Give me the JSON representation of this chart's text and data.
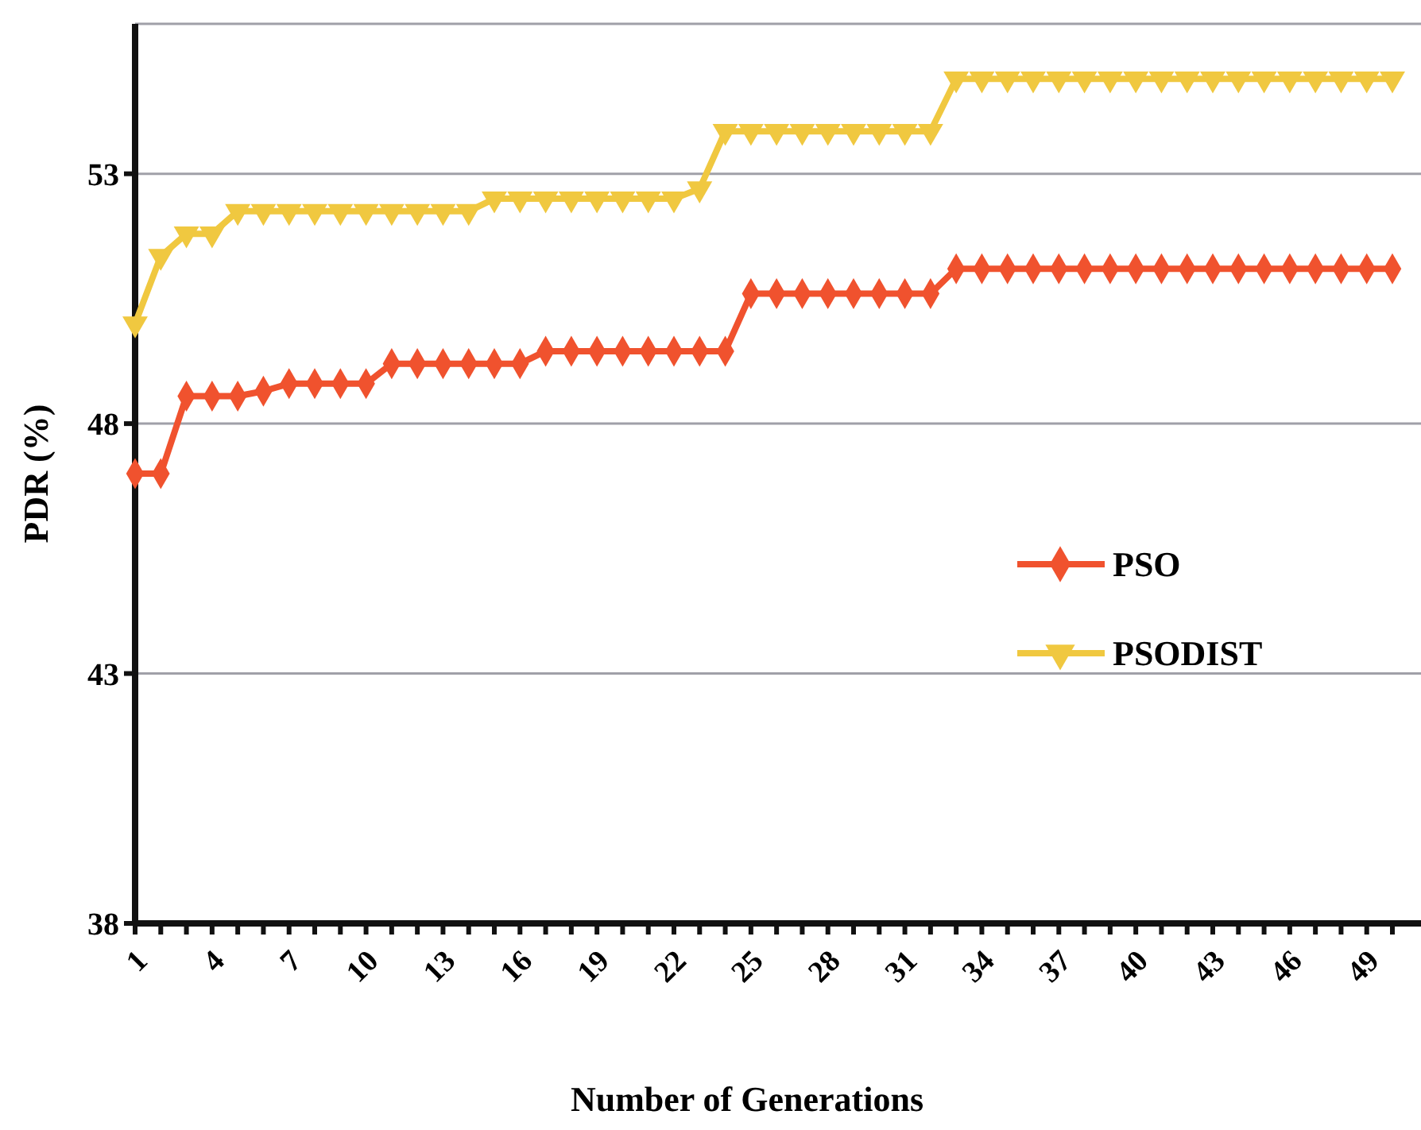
{
  "chart_data": {
    "type": "line",
    "xlabel": "Number of Generations",
    "ylabel": "PDR (%)",
    "categories": [
      "1",
      null,
      null,
      "4",
      null,
      null,
      "7",
      null,
      null,
      "10",
      null,
      null,
      "13",
      null,
      null,
      "16",
      null,
      null,
      "19",
      null,
      null,
      "22",
      null,
      null,
      "25",
      null,
      null,
      "28",
      null,
      null,
      "31",
      null,
      null,
      "34",
      null,
      null,
      "37",
      null,
      null,
      "40",
      null,
      null,
      "43",
      null,
      null,
      "46",
      null,
      null,
      "49",
      null
    ],
    "ylim": [
      38,
      56
    ],
    "yticks": [
      38,
      43,
      48,
      53
    ],
    "grid": "y",
    "legend": "right",
    "line_style": "solid",
    "series": [
      {
        "name": "PSO",
        "color": "#f0522e",
        "marker": "diamond",
        "values": [
          47.0,
          47.0,
          48.55,
          48.55,
          48.55,
          48.65,
          48.8,
          48.8,
          48.8,
          48.8,
          49.2,
          49.2,
          49.2,
          49.2,
          49.2,
          49.2,
          49.45,
          49.45,
          49.45,
          49.45,
          49.45,
          49.45,
          49.45,
          49.45,
          50.6,
          50.6,
          50.6,
          50.6,
          50.6,
          50.6,
          50.6,
          50.6,
          51.1,
          51.1,
          51.1,
          51.1,
          51.1,
          51.1,
          51.1,
          51.1,
          51.1,
          51.1,
          51.1,
          51.1,
          51.1,
          51.1,
          51.1,
          51.1,
          51.1,
          51.1
        ]
      },
      {
        "name": "PSODIST",
        "color": "#f0c840",
        "marker": "triangle",
        "values": [
          50.0,
          51.35,
          51.8,
          51.8,
          52.25,
          52.25,
          52.25,
          52.25,
          52.25,
          52.25,
          52.25,
          52.25,
          52.25,
          52.25,
          52.5,
          52.5,
          52.5,
          52.5,
          52.5,
          52.5,
          52.5,
          52.5,
          52.7,
          53.85,
          53.85,
          53.85,
          53.85,
          53.85,
          53.85,
          53.85,
          53.85,
          53.85,
          54.9,
          54.9,
          54.9,
          54.9,
          54.9,
          54.9,
          54.9,
          54.9,
          54.9,
          54.9,
          54.9,
          54.9,
          54.9,
          54.9,
          54.9,
          54.9,
          54.9,
          54.9
        ]
      }
    ]
  }
}
